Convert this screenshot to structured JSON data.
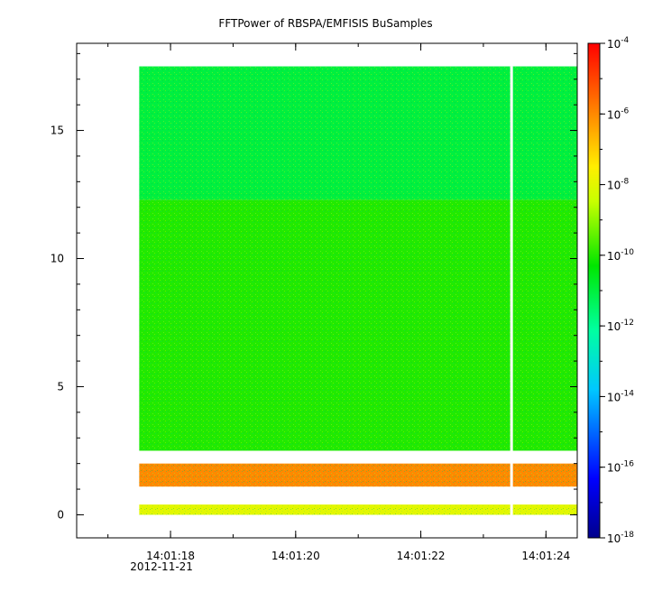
{
  "chart_data": {
    "type": "heatmap",
    "title": "FFTPower of RBSPA/EMFISIS  BuSamples",
    "xlabel": "",
    "ylabel": "",
    "date_label": "2012-11-21",
    "x_ticks": [
      "14:01:18",
      "14:01:20",
      "14:01:22",
      "14:01:24"
    ],
    "x_range_seconds": [
      "14:01:16.50",
      "14:01:24.50"
    ],
    "data_extent_seconds": [
      "14:01:17.50",
      "14:01:24.50"
    ],
    "gap_at": "14:01:23.45",
    "y_ticks": [
      0,
      5,
      10,
      15
    ],
    "ylim": [
      -0.9,
      18.4
    ],
    "data_ylim": [
      0,
      17.5
    ],
    "colorbar": {
      "scale": "log",
      "range": [
        "1e-18",
        "1e-4"
      ],
      "tick_base": "10",
      "tick_exponents": [
        "-4",
        "-6",
        "-8",
        "-10",
        "-12",
        "-14",
        "-16",
        "-18"
      ]
    },
    "bands": [
      {
        "from": 12.3,
        "to": 17.5,
        "level": "1e-11"
      },
      {
        "from": 2.5,
        "to": 12.3,
        "level": "1e-10"
      },
      {
        "from": 1.1,
        "to": 2.0,
        "level": "1e-6"
      },
      {
        "from": 0.0,
        "to": 0.4,
        "level": "1e-8"
      }
    ]
  }
}
